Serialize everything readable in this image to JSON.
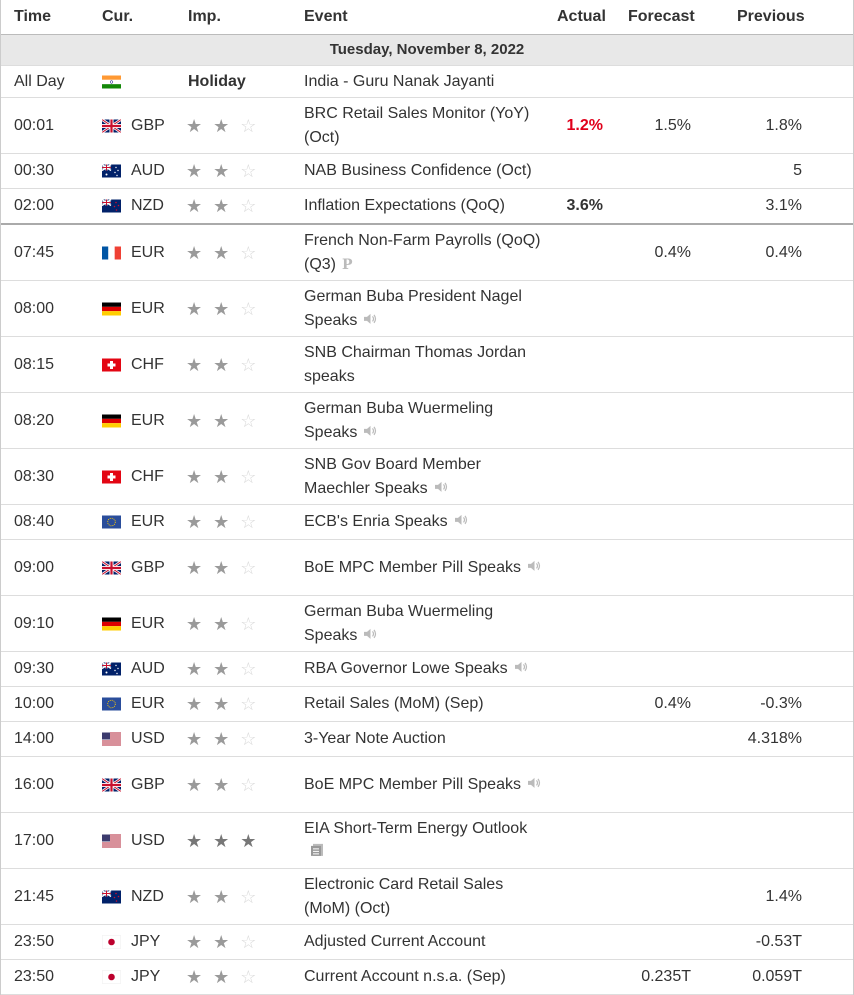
{
  "headers": {
    "time": "Time",
    "cur": "Cur.",
    "imp": "Imp.",
    "event": "Event",
    "actual": "Actual",
    "forecast": "Forecast",
    "previous": "Previous"
  },
  "day_label": "Tuesday, November 8, 2022",
  "rows": [
    {
      "time": "All Day",
      "flag": "india",
      "cur": "",
      "holiday": "Holiday",
      "event": "India - Guru Nanak Jayanti",
      "actual": "",
      "forecast": "",
      "previous": ""
    },
    {
      "time": "00:01",
      "flag": "uk",
      "cur": "GBP",
      "stars": 2,
      "event": "BRC Retail Sales Monitor (YoY) (Oct)",
      "actual": "1.2%",
      "actual_color": "red",
      "forecast": "1.5%",
      "previous": "1.8%"
    },
    {
      "time": "00:30",
      "flag": "au",
      "cur": "AUD",
      "stars": 2,
      "event": "NAB Business Confidence (Oct)",
      "actual": "",
      "forecast": "",
      "previous": "5"
    },
    {
      "time": "02:00",
      "flag": "nz",
      "cur": "NZD",
      "stars": 2,
      "event": "Inflation Expectations (QoQ)",
      "actual": "3.6%",
      "actual_color": "black",
      "forecast": "",
      "previous": "3.1%"
    },
    {
      "time": "07:45",
      "flag": "fr",
      "cur": "EUR",
      "stars": 2,
      "event": "French Non-Farm Payrolls (QoQ) (Q3)",
      "icon": "preliminary-icon",
      "icon_text": "P",
      "actual": "",
      "forecast": "0.4%",
      "previous": "0.4%"
    },
    {
      "time": "08:00",
      "flag": "de",
      "cur": "EUR",
      "stars": 2,
      "event": "German Buba President Nagel Speaks",
      "icon": "speech-icon",
      "actual": "",
      "forecast": "",
      "previous": ""
    },
    {
      "time": "08:15",
      "flag": "ch",
      "cur": "CHF",
      "stars": 2,
      "event": "SNB Chairman Thomas Jordan speaks",
      "actual": "",
      "forecast": "",
      "previous": ""
    },
    {
      "time": "08:20",
      "flag": "de",
      "cur": "EUR",
      "stars": 2,
      "event": "German Buba Wuermeling Speaks",
      "icon": "speech-icon",
      "actual": "",
      "forecast": "",
      "previous": ""
    },
    {
      "time": "08:30",
      "flag": "ch",
      "cur": "CHF",
      "stars": 2,
      "event": "SNB Gov Board Member Maechler Speaks",
      "icon": "speech-icon",
      "actual": "",
      "forecast": "",
      "previous": ""
    },
    {
      "time": "08:40",
      "flag": "eu",
      "cur": "EUR",
      "stars": 2,
      "event": "ECB's Enria Speaks",
      "icon": "speech-icon",
      "actual": "",
      "forecast": "",
      "previous": ""
    },
    {
      "time": "09:00",
      "flag": "uk",
      "cur": "GBP",
      "stars": 2,
      "event": "BoE MPC Member Pill Speaks",
      "icon": "speech-icon",
      "actual": "",
      "forecast": "",
      "previous": ""
    },
    {
      "time": "09:10",
      "flag": "de",
      "cur": "EUR",
      "stars": 2,
      "event": "German Buba Wuermeling Speaks",
      "icon": "speech-icon",
      "actual": "",
      "forecast": "",
      "previous": ""
    },
    {
      "time": "09:30",
      "flag": "au",
      "cur": "AUD",
      "stars": 2,
      "event": "RBA Governor Lowe Speaks",
      "icon": "speech-icon",
      "actual": "",
      "forecast": "",
      "previous": ""
    },
    {
      "time": "10:00",
      "flag": "eu",
      "cur": "EUR",
      "stars": 2,
      "event": "Retail Sales (MoM) (Sep)",
      "actual": "",
      "forecast": "0.4%",
      "previous": "-0.3%"
    },
    {
      "time": "14:00",
      "flag": "us",
      "cur": "USD",
      "stars": 2,
      "event": "3-Year Note Auction",
      "actual": "",
      "forecast": "",
      "previous": "4.318%"
    },
    {
      "time": "16:00",
      "flag": "uk",
      "cur": "GBP",
      "stars": 2,
      "event": "BoE MPC Member Pill Speaks",
      "icon": "speech-icon",
      "actual": "",
      "forecast": "",
      "previous": ""
    },
    {
      "time": "17:00",
      "flag": "us",
      "cur": "USD",
      "stars": 3,
      "event": "EIA Short-Term Energy Outlook",
      "icon": "report-icon",
      "actual": "",
      "forecast": "",
      "previous": ""
    },
    {
      "time": "21:45",
      "flag": "nz",
      "cur": "NZD",
      "stars": 2,
      "event": "Electronic Card Retail Sales (MoM) (Oct)",
      "actual": "",
      "forecast": "",
      "previous": "1.4%"
    },
    {
      "time": "23:50",
      "flag": "jp",
      "cur": "JPY",
      "stars": 2,
      "event": "Adjusted Current Account",
      "actual": "",
      "forecast": "",
      "previous": "-0.53T"
    },
    {
      "time": "23:50",
      "flag": "jp",
      "cur": "JPY",
      "stars": 2,
      "event": "Current Account n.s.a. (Sep)",
      "actual": "",
      "forecast": "0.235T",
      "previous": "0.059T"
    }
  ],
  "colors": {
    "actual_red": "#e0001b",
    "header_bg": "#e8e8e8",
    "star_on": "#9a9a9a",
    "star_off": "#d8d8d8"
  }
}
